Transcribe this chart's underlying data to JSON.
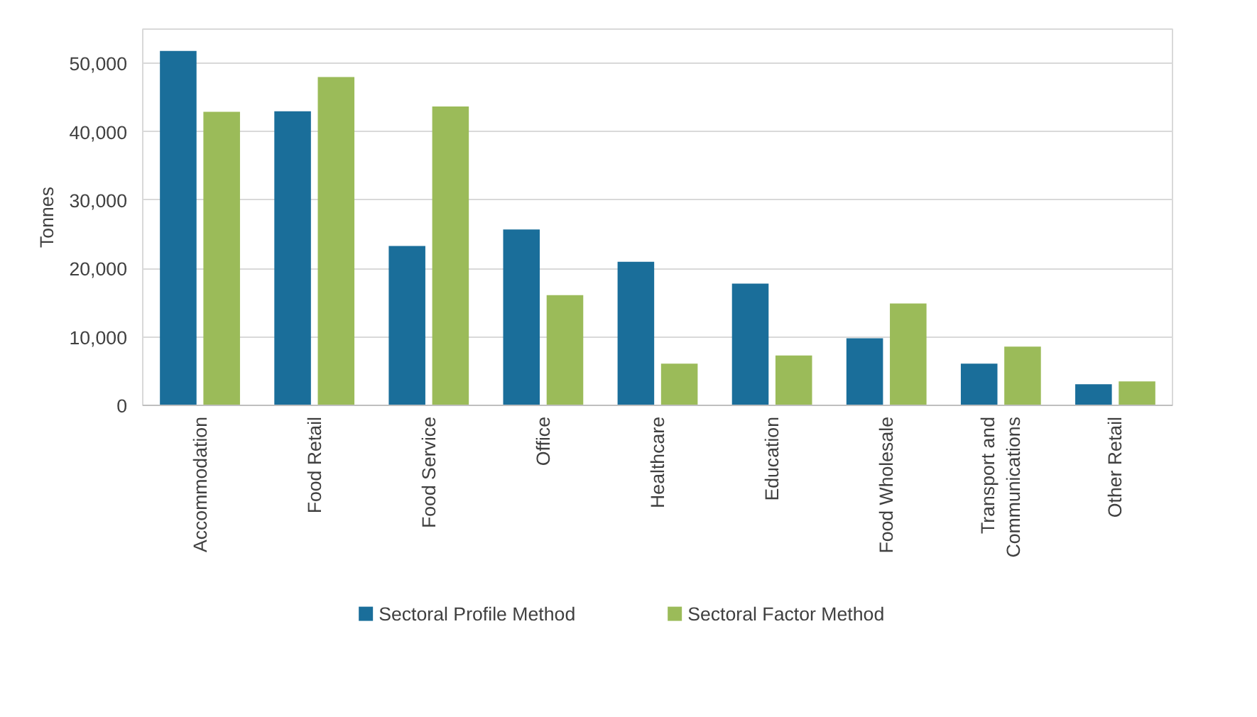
{
  "chart_data": {
    "type": "bar",
    "ylabel": "Tonnes",
    "categories": [
      "Accommodation",
      "Food Retail",
      "Food Service",
      "Office",
      "Healthcare",
      "Education",
      "Food Wholesale",
      "Transport and Communications",
      "Other Retail"
    ],
    "series": [
      {
        "name": "Sectoral Profile Method",
        "color": "#1a6e9a",
        "values": [
          51800,
          43000,
          23300,
          25700,
          21000,
          17800,
          9800,
          6100,
          3100
        ]
      },
      {
        "name": "Sectoral Factor Method",
        "color": "#9bbb59",
        "values": [
          42900,
          48000,
          43700,
          16100,
          6100,
          7300,
          14900,
          8600,
          3500
        ]
      }
    ],
    "ylim": [
      0,
      55000
    ],
    "yticks": [
      {
        "value": 0,
        "label": "0"
      },
      {
        "value": 10000,
        "label": "10,000"
      },
      {
        "value": 20000,
        "label": "20,000"
      },
      {
        "value": 30000,
        "label": "30,000"
      },
      {
        "value": 40000,
        "label": "40,000"
      },
      {
        "value": 50000,
        "label": "50,000"
      }
    ],
    "grid": "y",
    "legend": "bottom"
  }
}
